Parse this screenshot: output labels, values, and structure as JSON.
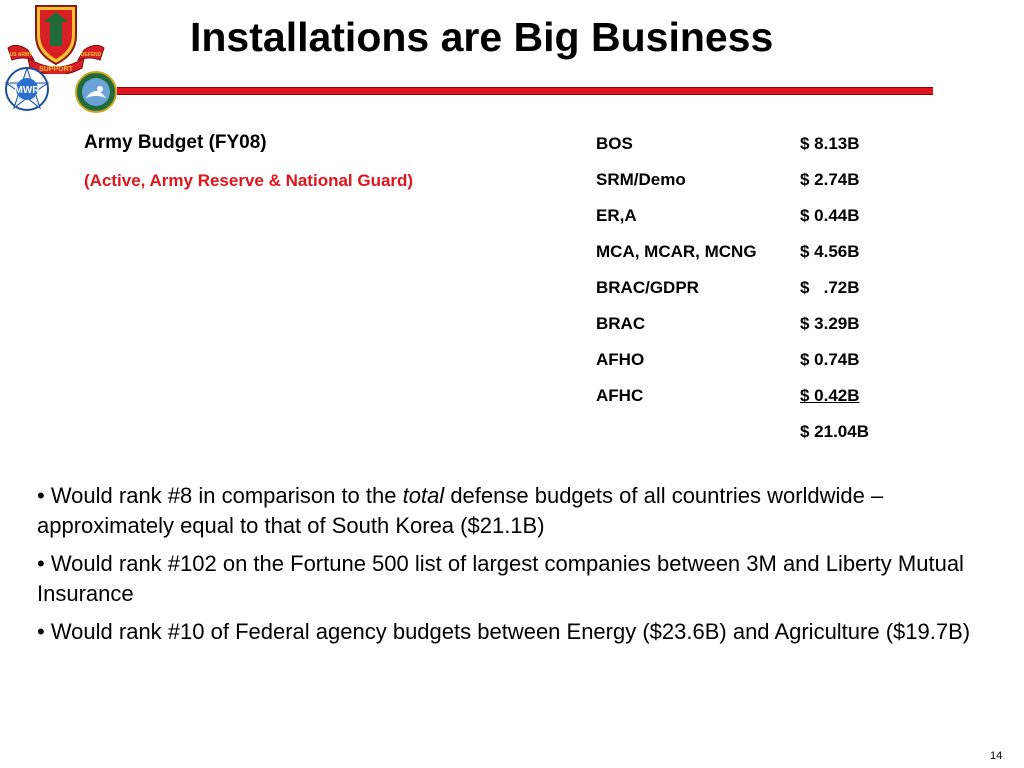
{
  "slide": {
    "title": "Installations are Big Business",
    "page_number": "14"
  },
  "logos": {
    "main": {
      "icon": "army-installation-management-crest",
      "ribbon_left": "US ARMY",
      "ribbon_center": "SUPPORT",
      "ribbon_right": "DEFEND"
    },
    "mwr": {
      "icon": "mwr-globe-logo",
      "text": "MWR"
    },
    "eagle": {
      "icon": "eagle-seal-logo"
    }
  },
  "budget": {
    "title": "Army Budget (FY08)",
    "subtitle": "(Active, Army Reserve & National Guard)",
    "rows": [
      {
        "name": "BOS",
        "value": "$ 8.13B"
      },
      {
        "name": "SRM/Demo",
        "value": "$ 2.74B"
      },
      {
        "name": "ER,A",
        "value": "$ 0.44B"
      },
      {
        "name": "MCA, MCAR, MCNG",
        "value": "$ 4.56B"
      },
      {
        "name": "BRAC/GDPR",
        "value": "$   .72B"
      },
      {
        "name": "BRAC",
        "value": "$ 3.29B"
      },
      {
        "name": "AFHO",
        "value": "$ 0.74B"
      },
      {
        "name": "AFHC",
        "value": "$ 0.42B"
      },
      {
        "name": "",
        "value": "$ 21.04B"
      }
    ]
  },
  "bullets": [
    {
      "before": "•  Would rank #8 in comparison to the ",
      "emph": "total",
      "after": " defense budgets of all countries worldwide – approximately equal to that of South Korea ($21.1B)"
    },
    {
      "before": "•  Would rank #102 on the Fortune 500 list of largest companies between 3M and Liberty Mutual Insurance",
      "emph": "",
      "after": ""
    },
    {
      "before": "•  Would rank #10 of Federal agency budgets between Energy ($23.6B) and Agriculture ($19.7B)",
      "emph": "",
      "after": ""
    }
  ],
  "colors": {
    "accent_red": "#e0141d",
    "text": "#000000"
  }
}
